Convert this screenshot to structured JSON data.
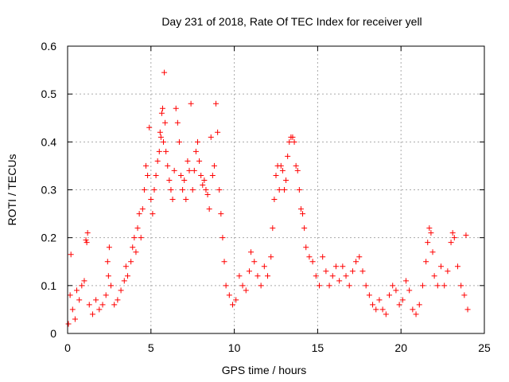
{
  "chart_data": {
    "type": "scatter",
    "title": "Day 231 of 2018, Rate Of TEC Index for receiver yell",
    "xlabel": "GPS time / hours",
    "ylabel": "ROTI / TECUs",
    "xlim": [
      0,
      25
    ],
    "ylim": [
      0,
      0.6
    ],
    "xticks": [
      "0",
      "5",
      "10",
      "15",
      "20",
      "25"
    ],
    "yticks": [
      "0",
      "0.1",
      "0.2",
      "0.3",
      "0.4",
      "0.5",
      "0.6"
    ],
    "grid": true,
    "marker": "+",
    "marker_color": "#ff0000",
    "series": [
      {
        "points": [
          [
            0.05,
            0.02
          ],
          [
            0.15,
            0.08
          ],
          [
            0.2,
            0.165
          ],
          [
            0.3,
            0.05
          ],
          [
            0.45,
            0.03
          ],
          [
            0.55,
            0.09
          ],
          [
            0.7,
            0.07
          ],
          [
            0.85,
            0.1
          ],
          [
            1.0,
            0.11
          ],
          [
            1.1,
            0.195
          ],
          [
            1.15,
            0.19
          ],
          [
            1.2,
            0.21
          ],
          [
            1.3,
            0.06
          ],
          [
            1.5,
            0.04
          ],
          [
            1.7,
            0.07
          ],
          [
            1.9,
            0.05
          ],
          [
            2.1,
            0.06
          ],
          [
            2.3,
            0.08
          ],
          [
            2.4,
            0.15
          ],
          [
            2.45,
            0.12
          ],
          [
            2.5,
            0.18
          ],
          [
            2.6,
            0.1
          ],
          [
            2.8,
            0.06
          ],
          [
            3.0,
            0.07
          ],
          [
            3.2,
            0.09
          ],
          [
            3.4,
            0.11
          ],
          [
            3.5,
            0.14
          ],
          [
            3.6,
            0.12
          ],
          [
            3.8,
            0.15
          ],
          [
            3.9,
            0.18
          ],
          [
            4.0,
            0.2
          ],
          [
            4.1,
            0.17
          ],
          [
            4.2,
            0.22
          ],
          [
            4.3,
            0.25
          ],
          [
            4.4,
            0.2
          ],
          [
            4.5,
            0.26
          ],
          [
            4.6,
            0.3
          ],
          [
            4.7,
            0.35
          ],
          [
            4.8,
            0.33
          ],
          [
            4.9,
            0.43
          ],
          [
            5.0,
            0.28
          ],
          [
            5.1,
            0.25
          ],
          [
            5.2,
            0.3
          ],
          [
            5.3,
            0.33
          ],
          [
            5.4,
            0.36
          ],
          [
            5.5,
            0.38
          ],
          [
            5.55,
            0.42
          ],
          [
            5.6,
            0.41
          ],
          [
            5.65,
            0.46
          ],
          [
            5.7,
            0.47
          ],
          [
            5.75,
            0.4
          ],
          [
            5.8,
            0.545
          ],
          [
            5.85,
            0.44
          ],
          [
            5.9,
            0.38
          ],
          [
            6.0,
            0.35
          ],
          [
            6.1,
            0.32
          ],
          [
            6.2,
            0.3
          ],
          [
            6.3,
            0.28
          ],
          [
            6.4,
            0.34
          ],
          [
            6.5,
            0.47
          ],
          [
            6.6,
            0.44
          ],
          [
            6.7,
            0.4
          ],
          [
            6.8,
            0.33
          ],
          [
            6.9,
            0.3
          ],
          [
            7.0,
            0.32
          ],
          [
            7.1,
            0.28
          ],
          [
            7.2,
            0.36
          ],
          [
            7.3,
            0.34
          ],
          [
            7.4,
            0.48
          ],
          [
            7.5,
            0.3
          ],
          [
            7.6,
            0.34
          ],
          [
            7.7,
            0.38
          ],
          [
            7.8,
            0.4
          ],
          [
            7.9,
            0.36
          ],
          [
            8.0,
            0.33
          ],
          [
            8.1,
            0.31
          ],
          [
            8.2,
            0.32
          ],
          [
            8.3,
            0.3
          ],
          [
            8.4,
            0.29
          ],
          [
            8.5,
            0.26
          ],
          [
            8.6,
            0.41
          ],
          [
            8.7,
            0.33
          ],
          [
            8.8,
            0.35
          ],
          [
            8.9,
            0.48
          ],
          [
            9.0,
            0.42
          ],
          [
            9.1,
            0.3
          ],
          [
            9.2,
            0.25
          ],
          [
            9.3,
            0.2
          ],
          [
            9.4,
            0.15
          ],
          [
            9.5,
            0.1
          ],
          [
            9.7,
            0.08
          ],
          [
            9.9,
            0.06
          ],
          [
            10.1,
            0.07
          ],
          [
            10.3,
            0.12
          ],
          [
            10.5,
            0.1
          ],
          [
            10.7,
            0.09
          ],
          [
            10.9,
            0.13
          ],
          [
            11.0,
            0.17
          ],
          [
            11.2,
            0.15
          ],
          [
            11.4,
            0.12
          ],
          [
            11.6,
            0.1
          ],
          [
            11.8,
            0.14
          ],
          [
            12.0,
            0.12
          ],
          [
            12.2,
            0.16
          ],
          [
            12.3,
            0.22
          ],
          [
            12.4,
            0.28
          ],
          [
            12.5,
            0.33
          ],
          [
            12.6,
            0.35
          ],
          [
            12.7,
            0.3
          ],
          [
            12.8,
            0.35
          ],
          [
            12.9,
            0.34
          ],
          [
            13.0,
            0.3
          ],
          [
            13.1,
            0.32
          ],
          [
            13.2,
            0.37
          ],
          [
            13.3,
            0.4
          ],
          [
            13.4,
            0.41
          ],
          [
            13.5,
            0.41
          ],
          [
            13.6,
            0.4
          ],
          [
            13.7,
            0.35
          ],
          [
            13.8,
            0.34
          ],
          [
            13.9,
            0.3
          ],
          [
            14.0,
            0.26
          ],
          [
            14.1,
            0.25
          ],
          [
            14.2,
            0.22
          ],
          [
            14.3,
            0.18
          ],
          [
            14.5,
            0.16
          ],
          [
            14.7,
            0.15
          ],
          [
            14.9,
            0.12
          ],
          [
            15.1,
            0.1
          ],
          [
            15.3,
            0.16
          ],
          [
            15.5,
            0.13
          ],
          [
            15.7,
            0.1
          ],
          [
            15.9,
            0.12
          ],
          [
            16.1,
            0.14
          ],
          [
            16.3,
            0.11
          ],
          [
            16.5,
            0.14
          ],
          [
            16.7,
            0.12
          ],
          [
            16.9,
            0.1
          ],
          [
            17.1,
            0.13
          ],
          [
            17.3,
            0.15
          ],
          [
            17.5,
            0.16
          ],
          [
            17.7,
            0.13
          ],
          [
            17.9,
            0.1
          ],
          [
            18.1,
            0.08
          ],
          [
            18.3,
            0.06
          ],
          [
            18.5,
            0.05
          ],
          [
            18.7,
            0.07
          ],
          [
            18.9,
            0.05
          ],
          [
            19.1,
            0.04
          ],
          [
            19.3,
            0.08
          ],
          [
            19.5,
            0.1
          ],
          [
            19.7,
            0.09
          ],
          [
            19.9,
            0.06
          ],
          [
            20.1,
            0.07
          ],
          [
            20.3,
            0.11
          ],
          [
            20.5,
            0.09
          ],
          [
            20.7,
            0.05
          ],
          [
            20.9,
            0.04
          ],
          [
            21.1,
            0.06
          ],
          [
            21.3,
            0.1
          ],
          [
            21.5,
            0.15
          ],
          [
            21.6,
            0.19
          ],
          [
            21.7,
            0.22
          ],
          [
            21.8,
            0.21
          ],
          [
            21.9,
            0.17
          ],
          [
            22.0,
            0.12
          ],
          [
            22.2,
            0.1
          ],
          [
            22.4,
            0.14
          ],
          [
            22.6,
            0.1
          ],
          [
            22.8,
            0.13
          ],
          [
            23.0,
            0.19
          ],
          [
            23.1,
            0.21
          ],
          [
            23.2,
            0.2
          ],
          [
            23.4,
            0.14
          ],
          [
            23.6,
            0.1
          ],
          [
            23.8,
            0.08
          ],
          [
            23.9,
            0.205
          ],
          [
            24.0,
            0.05
          ]
        ]
      }
    ]
  }
}
